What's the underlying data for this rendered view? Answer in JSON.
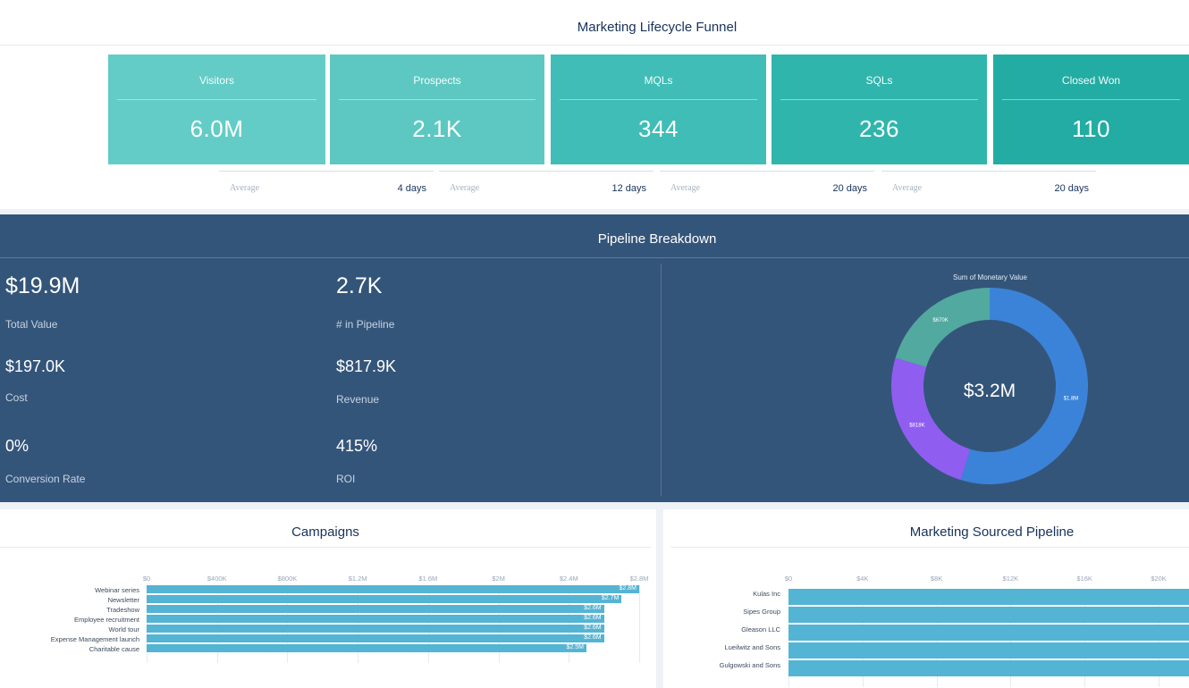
{
  "funnel": {
    "title": "Marketing Lifecycle Funnel",
    "stages": [
      {
        "label": "Visitors",
        "value": "6.0M",
        "color": "#63ccc6"
      },
      {
        "label": "Prospects",
        "value": "2.1K",
        "color": "#5cc8c1"
      },
      {
        "label": "MQLs",
        "value": "344",
        "color": "#3fbdb6"
      },
      {
        "label": "SQLs",
        "value": "236",
        "color": "#30b5ad"
      },
      {
        "label": "Closed Won",
        "value": "110",
        "color": "#22aca3"
      }
    ],
    "averages": [
      {
        "label": "Average",
        "value": "4 days"
      },
      {
        "label": "Average",
        "value": "12 days"
      },
      {
        "label": "Average",
        "value": "20 days"
      },
      {
        "label": "Average",
        "value": "20 days"
      }
    ]
  },
  "pipeline": {
    "title": "Pipeline Breakdown",
    "total_value": {
      "value": "$19.9M",
      "label": "Total Value"
    },
    "in_pipeline": {
      "value": "2.7K",
      "label": "# in Pipeline"
    },
    "cost": {
      "value": "$197.0K",
      "label": "Cost"
    },
    "revenue": {
      "value": "$817.9K",
      "label": "Revenue"
    },
    "conversion": {
      "value": "0%",
      "label": "Conversion Rate"
    },
    "roi": {
      "value": "415%",
      "label": "ROI"
    },
    "donut": {
      "title": "Sum of Monetary Value",
      "center": "$3.2M",
      "slices": [
        {
          "label": "$1.8M",
          "value": 1.8,
          "color": "#3b83d9"
        },
        {
          "label": "$818K",
          "value": 0.818,
          "color": "#8f5ef0"
        },
        {
          "label": "$670K",
          "value": 0.67,
          "color": "#52a99f"
        }
      ]
    }
  },
  "campaigns": {
    "title": "Campaigns",
    "ticks": [
      "$0",
      "$400K",
      "$800K",
      "$1.2M",
      "$1.6M",
      "$2M",
      "$2.4M",
      "$2.8M"
    ],
    "rows": [
      {
        "label": "Webinar series",
        "value": 2.8,
        "text": "$2.8M"
      },
      {
        "label": "Newsletter",
        "value": 2.7,
        "text": "$2.7M"
      },
      {
        "label": "Tradeshow",
        "value": 2.6,
        "text": "$2.6M"
      },
      {
        "label": "Employee recruitment",
        "value": 2.6,
        "text": "$2.6M"
      },
      {
        "label": "World tour",
        "value": 2.6,
        "text": "$2.6M"
      },
      {
        "label": "Expense Management launch",
        "value": 2.6,
        "text": "$2.6M"
      },
      {
        "label": "Charitable cause",
        "value": 2.5,
        "text": "$2.5M"
      }
    ]
  },
  "sourced": {
    "title": "Marketing Sourced Pipeline",
    "ticks": [
      "$0",
      "$4K",
      "$8K",
      "$12K",
      "$16K",
      "$20K"
    ],
    "rows": [
      {
        "label": "Kulas Inc"
      },
      {
        "label": "Sipes Group"
      },
      {
        "label": "Gleason LLC"
      },
      {
        "label": "Lueilwitz and Sons"
      },
      {
        "label": "Gulgowski and Sons"
      }
    ]
  }
}
